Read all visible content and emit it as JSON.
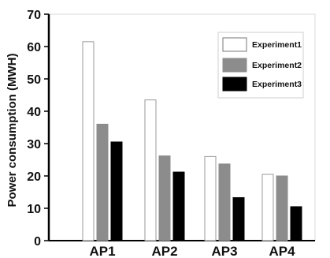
{
  "chart_data": {
    "type": "bar",
    "title": "",
    "xlabel": "",
    "ylabel": "Power consumption (MWH)",
    "ylim": [
      0,
      70
    ],
    "yticks": [
      0,
      10,
      20,
      30,
      40,
      50,
      60,
      70
    ],
    "categories": [
      "AP1",
      "AP2",
      "AP3",
      "AP4"
    ],
    "series": [
      {
        "name": "Experiment1",
        "color": "#ffffff",
        "values": [
          61.5,
          43.5,
          26,
          20.5
        ]
      },
      {
        "name": "Experiment2",
        "color": "#8c8c8c",
        "values": [
          36,
          26.2,
          23.7,
          20
        ]
      },
      {
        "name": "Experiment3",
        "color": "#000000",
        "values": [
          30.5,
          21.2,
          13.3,
          10.5
        ]
      }
    ],
    "legend_position": "top-right",
    "grid": false
  }
}
